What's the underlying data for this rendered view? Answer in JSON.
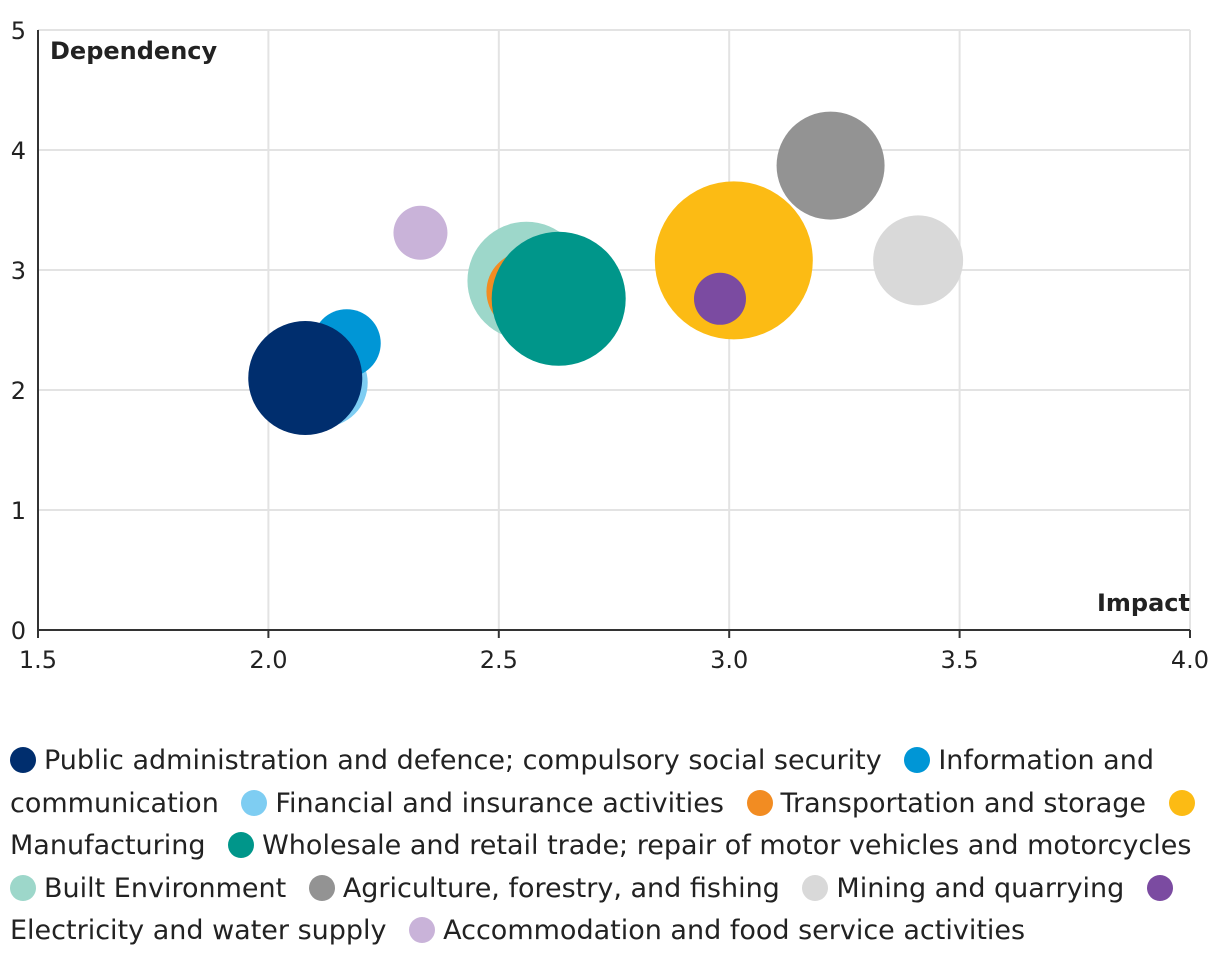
{
  "chart_data": {
    "type": "scatter",
    "xlabel": "Impact",
    "ylabel": "Dependency",
    "xlim": [
      1.5,
      4.0
    ],
    "ylim": [
      0,
      5
    ],
    "x_ticks": [
      "1.5",
      "2.0",
      "2.5",
      "3.0",
      "3.5",
      "4.0"
    ],
    "y_ticks": [
      "0",
      "1",
      "2",
      "3",
      "4",
      "5"
    ],
    "grid": true,
    "legend_position": "bottom",
    "series": [
      {
        "name": "Public administration and defence; compulsory social security",
        "color": "#002e6e",
        "x": 2.08,
        "y": 2.1,
        "size": 57
      },
      {
        "name": "Information and communication",
        "color": "#0096d6",
        "x": 2.17,
        "y": 2.39,
        "size": 34
      },
      {
        "name": "Financial and insurance activities",
        "color": "#7ecdf2",
        "x": 2.12,
        "y": 2.06,
        "size": 44
      },
      {
        "name": "Transportation and storage",
        "color": "#f28c22",
        "x": 2.56,
        "y": 2.82,
        "size": 40
      },
      {
        "name": "Manufacturing",
        "color": "#fcbb14",
        "x": 3.01,
        "y": 3.08,
        "size": 79
      },
      {
        "name": "Wholesale and retail trade; repair of motor vehicles and motorcycles",
        "color": "#00968a",
        "x": 2.63,
        "y": 2.76,
        "size": 67
      },
      {
        "name": "Built Environment",
        "color": "#9dd7ca",
        "x": 2.56,
        "y": 2.91,
        "size": 59
      },
      {
        "name": "Agriculture, forestry, and fishing",
        "color": "#939393",
        "x": 3.22,
        "y": 3.87,
        "size": 54
      },
      {
        "name": "Mining and quarrying",
        "color": "#d9d9d9",
        "x": 3.41,
        "y": 3.08,
        "size": 45
      },
      {
        "name": "Electricity and water supply",
        "color": "#7b4ba1",
        "x": 2.98,
        "y": 2.76,
        "size": 26
      },
      {
        "name": "Accommodation and food service activities",
        "color": "#c9b3d9",
        "x": 2.33,
        "y": 3.31,
        "size": 27
      }
    ],
    "draw_order": [
      6,
      3,
      5,
      4,
      7,
      8,
      2,
      1,
      0,
      9,
      10
    ]
  }
}
